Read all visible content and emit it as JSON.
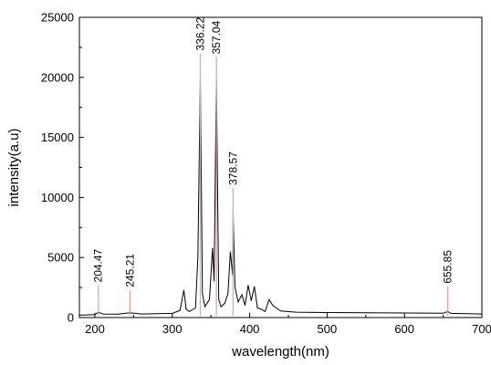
{
  "chart_data": {
    "type": "line",
    "title": "",
    "xlabel": "wavelength(nm)",
    "ylabel": "intensity(a.u)",
    "xlim": [
      180,
      700
    ],
    "ylim": [
      0,
      25000
    ],
    "x_ticks": [
      200,
      300,
      400,
      500,
      600,
      700
    ],
    "x_tick_labels": [
      "200",
      "300",
      "400",
      "500",
      "600",
      "700"
    ],
    "y_ticks": [
      0,
      5000,
      10000,
      15000,
      20000,
      25000
    ],
    "y_tick_labels": [
      "0",
      "5000",
      "10000",
      "15000",
      "20000",
      "25000"
    ],
    "grid": false,
    "legend": "none",
    "line_color": "#000000",
    "marker_color": "#e8a3a3",
    "series": [
      {
        "x": [
          180,
          200,
          204.47,
          210,
          230,
          245.21,
          260,
          280,
          300,
          310,
          315,
          318,
          322,
          330,
          333,
          336.22,
          339,
          342,
          348,
          352,
          354,
          357.04,
          360,
          363,
          368,
          372,
          375,
          378,
          378.57,
          381,
          385,
          390,
          394,
          398,
          402,
          406,
          410,
          415,
          420,
          425,
          430,
          440,
          460,
          500,
          550,
          600,
          650,
          655.85,
          660,
          700
        ],
        "y": [
          200,
          250,
          450,
          300,
          280,
          400,
          300,
          320,
          350,
          600,
          2300,
          700,
          500,
          800,
          5000,
          20000,
          2000,
          900,
          1500,
          5800,
          3000,
          20000,
          1500,
          900,
          1200,
          2000,
          5500,
          3500,
          8800,
          2500,
          1300,
          1900,
          1000,
          2700,
          1400,
          2600,
          800,
          700,
          500,
          1500,
          1000,
          550,
          450,
          420,
          400,
          380,
          360,
          500,
          350,
          300
        ]
      }
    ],
    "peak_markers": [
      {
        "x": 204.47,
        "label": "204.47",
        "height": 2700
      },
      {
        "x": 245.21,
        "label": "245.21",
        "height": 2300
      },
      {
        "x": 336.22,
        "label": "336.22",
        "height": 22000
      },
      {
        "x": 357.04,
        "label": "357.04",
        "height": 21700
      },
      {
        "x": 378.57,
        "label": "378.57",
        "height": 10800
      },
      {
        "x": 655.85,
        "label": "655.85",
        "height": 2600
      }
    ]
  }
}
